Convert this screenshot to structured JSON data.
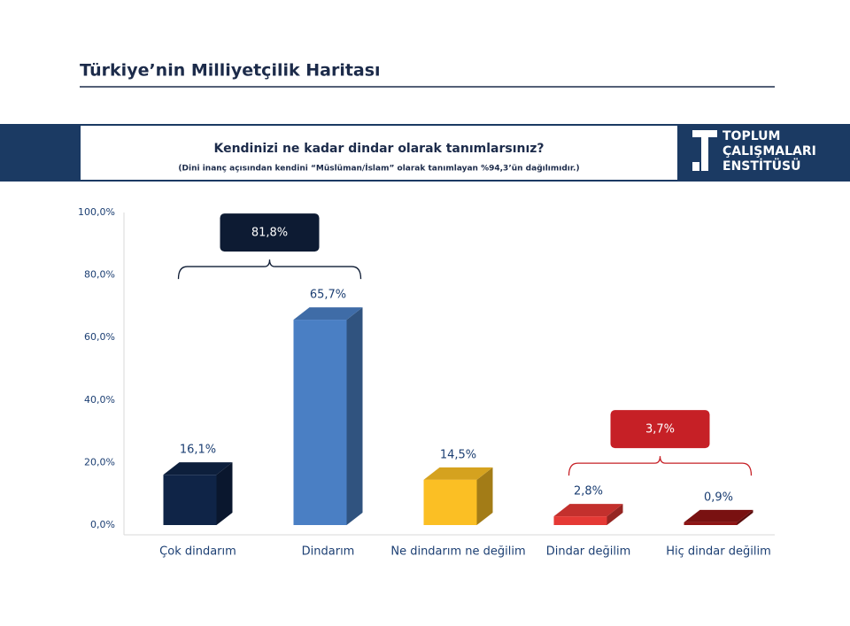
{
  "header": {
    "title": "Türkiye’nin Milliyetçilik Haritası"
  },
  "logo": {
    "lines": [
      "TOPLUM",
      "ÇALIŞMALARI",
      "ENSTİTÜSÜ"
    ]
  },
  "chart_data": {
    "type": "bar3d",
    "title": "Kendinizi ne kadar dindar olarak tanımlarsınız?",
    "subtitle": "(Dini inanç açısından kendini “Müslüman/İslam” olarak tanımlayan %94,3’ün dağılımıdır.)",
    "categories": [
      "Çok dindarım",
      "Dindarım",
      "Ne dindarım ne değilim",
      "Dindar değilim",
      "Hiç dindar değilim"
    ],
    "values": [
      16.1,
      65.7,
      14.5,
      2.8,
      0.9
    ],
    "value_labels": [
      "16,1%",
      "65,7%",
      "14,5%",
      "2,8%",
      "0,9%"
    ],
    "colors": [
      "#0f2447",
      "#4a7fc4",
      "#fbbf24",
      "#e53935",
      "#8e1414"
    ],
    "ylim": [
      0,
      100
    ],
    "yticks": [
      {
        "value": 0,
        "label": "0,0%"
      },
      {
        "value": 20,
        "label": "20,0%"
      },
      {
        "value": 40,
        "label": "40,0%"
      },
      {
        "value": 60,
        "label": "60,0%"
      },
      {
        "value": 80,
        "label": "80,0%"
      },
      {
        "value": 100,
        "label": "100,0%"
      }
    ],
    "groups": [
      {
        "categories": [
          "Çok dindarım",
          "Dindarım"
        ],
        "value": 81.8,
        "value_label": "81,8%",
        "color": "#0d1b33"
      },
      {
        "categories": [
          "Dindar değilim",
          "Hiç dindar değilim"
        ],
        "value": 3.7,
        "value_label": "3,7%",
        "color": "#c62026"
      }
    ]
  }
}
